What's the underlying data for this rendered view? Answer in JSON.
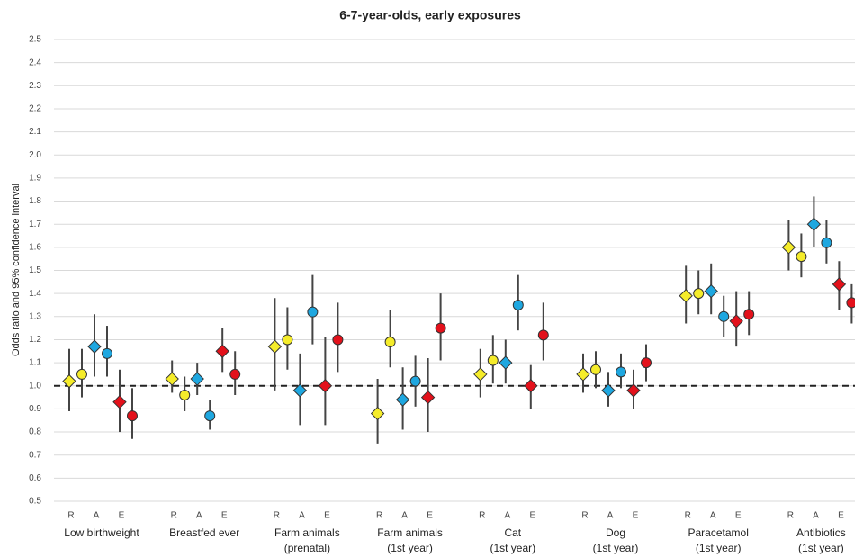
{
  "chart_data": {
    "type": "errorbar",
    "title": "6-7-year-olds, early exposures",
    "y_label": "Odds ratio and 95% confidence interval",
    "categories": [
      [
        "Low birthweight"
      ],
      [
        "Breastfed ever"
      ],
      [
        "Farm animals",
        "(prenatal)"
      ],
      [
        "Farm animals",
        "(1st year)"
      ],
      [
        "Cat",
        "(1st year)"
      ],
      [
        "Dog",
        "(1st year)"
      ],
      [
        "Paracetamol",
        "(1st year)"
      ],
      [
        "Antibiotics",
        "(1st year)"
      ]
    ],
    "sublabels": [
      "R",
      "A",
      "E"
    ],
    "ylim": [
      0.5,
      2.5
    ],
    "yticks": [
      0.5,
      0.6,
      0.7,
      0.8,
      0.9,
      {
        "value": 1,
        "label": "1.0"
      },
      1.1,
      1.2,
      1.3,
      1.4,
      1.5,
      1.6,
      1.7,
      1.8,
      1.9,
      {
        "value": 2,
        "label": "2.0"
      },
      2.1,
      2.2,
      2.3,
      2.4,
      2.5
    ],
    "grid": true,
    "refline": 1,
    "series": [
      {
        "marker": "diamond",
        "color": "#f5ec2a",
        "values": [
          1.02,
          1.03,
          1.17,
          0.88,
          1.05,
          1.05,
          1.39,
          1.6
        ],
        "low": [
          0.89,
          0.97,
          0.98,
          0.75,
          0.95,
          0.97,
          1.27,
          1.5
        ],
        "high": [
          1.16,
          1.11,
          1.38,
          1.03,
          1.16,
          1.14,
          1.52,
          1.72
        ]
      },
      {
        "marker": "circle",
        "color": "#f5ec2a",
        "values": [
          1.05,
          0.96,
          1.2,
          1.19,
          1.11,
          1.07,
          1.4,
          1.56
        ],
        "low": [
          0.95,
          0.89,
          1.07,
          1.08,
          1.01,
          0.99,
          1.31,
          1.47
        ],
        "high": [
          1.16,
          1.04,
          1.34,
          1.33,
          1.22,
          1.15,
          1.5,
          1.66
        ]
      },
      {
        "marker": "diamond",
        "color": "#1ea7e0",
        "values": [
          1.17,
          1.03,
          0.98,
          0.94,
          1.1,
          0.98,
          1.41,
          1.7
        ],
        "low": [
          1.04,
          0.96,
          0.83,
          0.81,
          1.01,
          0.91,
          1.31,
          1.6
        ],
        "high": [
          1.31,
          1.1,
          1.14,
          1.08,
          1.2,
          1.06,
          1.53,
          1.82
        ]
      },
      {
        "marker": "circle",
        "color": "#1ea7e0",
        "values": [
          1.14,
          0.87,
          1.32,
          1.02,
          1.35,
          1.06,
          1.3,
          1.62
        ],
        "low": [
          1.04,
          0.81,
          1.18,
          0.91,
          1.24,
          0.99,
          1.21,
          1.53
        ],
        "high": [
          1.26,
          0.94,
          1.48,
          1.13,
          1.48,
          1.14,
          1.39,
          1.72
        ]
      },
      {
        "marker": "diamond",
        "color": "#e3111b",
        "values": [
          0.93,
          1.15,
          1.0,
          0.95,
          1.0,
          0.98,
          1.28,
          1.44
        ],
        "low": [
          0.8,
          1.06,
          0.83,
          0.8,
          0.9,
          0.9,
          1.17,
          1.33
        ],
        "high": [
          1.07,
          1.25,
          1.21,
          1.12,
          1.09,
          1.07,
          1.41,
          1.54
        ]
      },
      {
        "marker": "circle",
        "color": "#e3111b",
        "values": [
          0.87,
          1.05,
          1.2,
          1.25,
          1.22,
          1.1,
          1.31,
          1.36
        ],
        "low": [
          0.77,
          0.96,
          1.06,
          1.11,
          1.11,
          1.02,
          1.22,
          1.27
        ],
        "high": [
          0.99,
          1.15,
          1.36,
          1.4,
          1.36,
          1.18,
          1.41,
          1.44
        ]
      }
    ]
  }
}
